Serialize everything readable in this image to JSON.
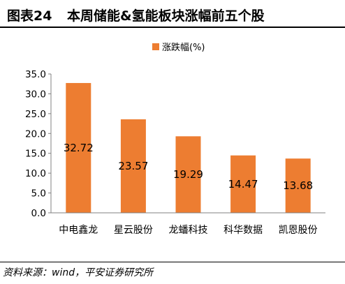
{
  "header": {
    "figure_label": "图表24",
    "title": "本周储能&氢能板块涨幅前五个股"
  },
  "footer": {
    "source": "资料来源：wind，平安证券研究所"
  },
  "colors": {
    "bar": "#ED7D31",
    "axis": "#808080",
    "text": "#000000"
  },
  "chart_data": {
    "type": "bar",
    "categories": [
      "中电鑫龙",
      "星云股份",
      "龙蟠科技",
      "科华数据",
      "凯恩股份"
    ],
    "series": [
      {
        "name": "涨跌幅(%)",
        "values": [
          32.72,
          23.57,
          19.29,
          14.47,
          13.68
        ]
      }
    ],
    "data_labels": [
      "32.72",
      "23.57",
      "19.29",
      "14.47",
      "13.68"
    ],
    "ylim": [
      0,
      35
    ],
    "yticks": [
      "0.0",
      "5.0",
      "10.0",
      "15.0",
      "20.0",
      "25.0",
      "30.0",
      "35.0"
    ],
    "grid": false,
    "legend_position": "top",
    "xlabel": "",
    "ylabel": ""
  }
}
